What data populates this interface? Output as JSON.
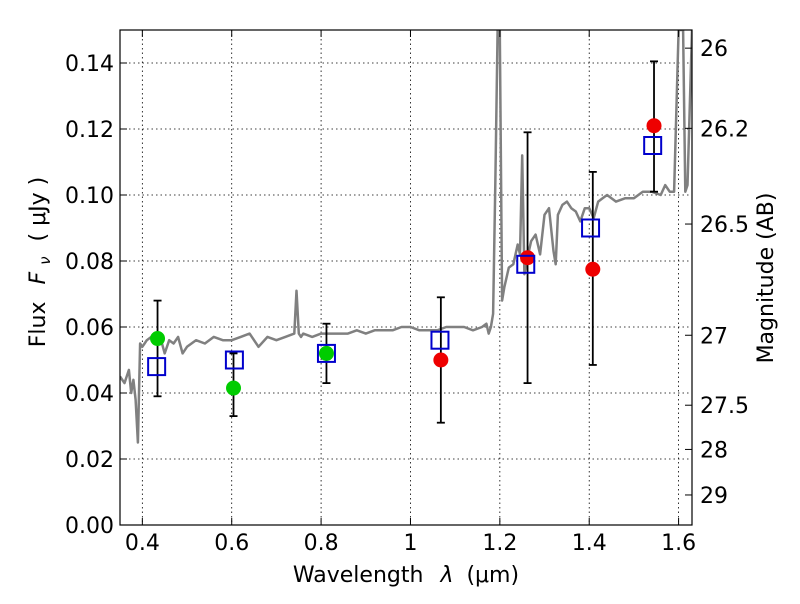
{
  "chart_data": {
    "type": "scatter",
    "xlabel_main": "Wavelength",
    "xlabel_symbol": "λ",
    "xlabel_unit": "(μm)",
    "ylabel_main": "Flux",
    "ylabel_symbol": "F",
    "ylabel_subscript": "ν",
    "ylabel_unit": "( μJy )",
    "y2label": "Magnitude (AB)",
    "xlim": [
      0.35,
      1.63
    ],
    "ylim": [
      0.0,
      0.15
    ],
    "grid": true,
    "x_ticks": [
      {
        "value": 0.4,
        "label": "0.4"
      },
      {
        "value": 0.6,
        "label": "0.6"
      },
      {
        "value": 0.8,
        "label": "0.8"
      },
      {
        "value": 1.0,
        "label": "1"
      },
      {
        "value": 1.2,
        "label": "1.2"
      },
      {
        "value": 1.4,
        "label": "1.4"
      },
      {
        "value": 1.6,
        "label": "1.6"
      }
    ],
    "y_ticks": [
      {
        "value": 0.0,
        "label": "0.00"
      },
      {
        "value": 0.02,
        "label": "0.02"
      },
      {
        "value": 0.04,
        "label": "0.04"
      },
      {
        "value": 0.06,
        "label": "0.06"
      },
      {
        "value": 0.08,
        "label": "0.08"
      },
      {
        "value": 0.1,
        "label": "0.10"
      },
      {
        "value": 0.12,
        "label": "0.12"
      },
      {
        "value": 0.14,
        "label": "0.14"
      }
    ],
    "y2_ticks": [
      {
        "flux": 0.1445,
        "label": "26"
      },
      {
        "flux": 0.1202,
        "label": "26.2"
      },
      {
        "flux": 0.0912,
        "label": "26.5"
      },
      {
        "flux": 0.0575,
        "label": "27"
      },
      {
        "flux": 0.0363,
        "label": "27.5"
      },
      {
        "flux": 0.0229,
        "label": "28"
      },
      {
        "flux": 0.0091,
        "label": "29"
      }
    ],
    "colors": {
      "model": "#808080",
      "green_points": "#00cc00",
      "red_points": "#ee0000",
      "boxes": "#0000cc",
      "errorbars": "#000000",
      "grid": "#000000"
    },
    "model_spectrum": {
      "name": "Model spectrum",
      "x": [
        0.35,
        0.36,
        0.37,
        0.375,
        0.38,
        0.385,
        0.39,
        0.395,
        0.4,
        0.405,
        0.41,
        0.42,
        0.43,
        0.44,
        0.45,
        0.46,
        0.47,
        0.48,
        0.49,
        0.5,
        0.52,
        0.54,
        0.56,
        0.58,
        0.6,
        0.62,
        0.64,
        0.66,
        0.68,
        0.7,
        0.72,
        0.74,
        0.745,
        0.75,
        0.755,
        0.76,
        0.78,
        0.8,
        0.82,
        0.84,
        0.86,
        0.88,
        0.9,
        0.92,
        0.94,
        0.96,
        0.98,
        1.0,
        1.02,
        1.04,
        1.06,
        1.08,
        1.1,
        1.12,
        1.14,
        1.16,
        1.17,
        1.175,
        1.18,
        1.185,
        1.19,
        1.195,
        1.2,
        1.205,
        1.21,
        1.22,
        1.23,
        1.24,
        1.245,
        1.25,
        1.255,
        1.26,
        1.27,
        1.28,
        1.29,
        1.3,
        1.31,
        1.32,
        1.325,
        1.33,
        1.34,
        1.35,
        1.36,
        1.37,
        1.38,
        1.39,
        1.4,
        1.41,
        1.42,
        1.43,
        1.44,
        1.46,
        1.48,
        1.5,
        1.52,
        1.54,
        1.56,
        1.57,
        1.58,
        1.59,
        1.6,
        1.605,
        1.61,
        1.615,
        1.62,
        1.63
      ],
      "y": [
        0.045,
        0.043,
        0.047,
        0.04,
        0.044,
        0.038,
        0.025,
        0.055,
        0.054,
        0.055,
        0.056,
        0.057,
        0.056,
        0.057,
        0.052,
        0.056,
        0.055,
        0.057,
        0.052,
        0.054,
        0.056,
        0.055,
        0.057,
        0.056,
        0.056,
        0.057,
        0.058,
        0.054,
        0.057,
        0.056,
        0.057,
        0.058,
        0.071,
        0.058,
        0.057,
        0.058,
        0.057,
        0.058,
        0.058,
        0.058,
        0.058,
        0.059,
        0.058,
        0.059,
        0.059,
        0.059,
        0.06,
        0.06,
        0.059,
        0.059,
        0.059,
        0.06,
        0.06,
        0.06,
        0.059,
        0.06,
        0.061,
        0.058,
        0.06,
        0.064,
        0.105,
        0.15,
        0.15,
        0.068,
        0.072,
        0.078,
        0.079,
        0.085,
        0.082,
        0.112,
        0.076,
        0.08,
        0.086,
        0.088,
        0.082,
        0.094,
        0.096,
        0.083,
        0.079,
        0.094,
        0.097,
        0.098,
        0.096,
        0.095,
        0.092,
        0.096,
        0.096,
        0.093,
        0.098,
        0.099,
        0.1,
        0.098,
        0.099,
        0.099,
        0.101,
        0.101,
        0.1,
        0.103,
        0.101,
        0.101,
        0.15,
        0.15,
        0.15,
        0.101,
        0.103,
        0.15
      ]
    },
    "series": [
      {
        "name": "Green points",
        "marker": "circle",
        "x": [
          0.434,
          0.604,
          0.812
        ],
        "y": [
          0.0565,
          0.0415,
          0.052
        ]
      },
      {
        "name": "Red points",
        "marker": "circle",
        "x": [
          1.068,
          1.262,
          1.408,
          1.545
        ],
        "y": [
          0.05,
          0.081,
          0.0775,
          0.121
        ]
      },
      {
        "name": "Boxes",
        "marker": "square",
        "x": [
          0.432,
          0.606,
          0.812,
          1.066,
          1.258,
          1.403,
          1.542
        ],
        "y": [
          0.048,
          0.05,
          0.052,
          0.056,
          0.079,
          0.09,
          0.115
        ]
      }
    ],
    "errorbars": [
      {
        "x": 0.434,
        "ylow": 0.039,
        "yhigh": 0.068
      },
      {
        "x": 0.604,
        "ylow": 0.033,
        "yhigh": 0.052
      },
      {
        "x": 0.812,
        "ylow": 0.043,
        "yhigh": 0.061
      },
      {
        "x": 1.068,
        "ylow": 0.031,
        "yhigh": 0.069
      },
      {
        "x": 1.262,
        "ylow": 0.043,
        "yhigh": 0.119
      },
      {
        "x": 1.408,
        "ylow": 0.0485,
        "yhigh": 0.107
      },
      {
        "x": 1.545,
        "ylow": 0.101,
        "yhigh": 0.1405
      }
    ]
  }
}
